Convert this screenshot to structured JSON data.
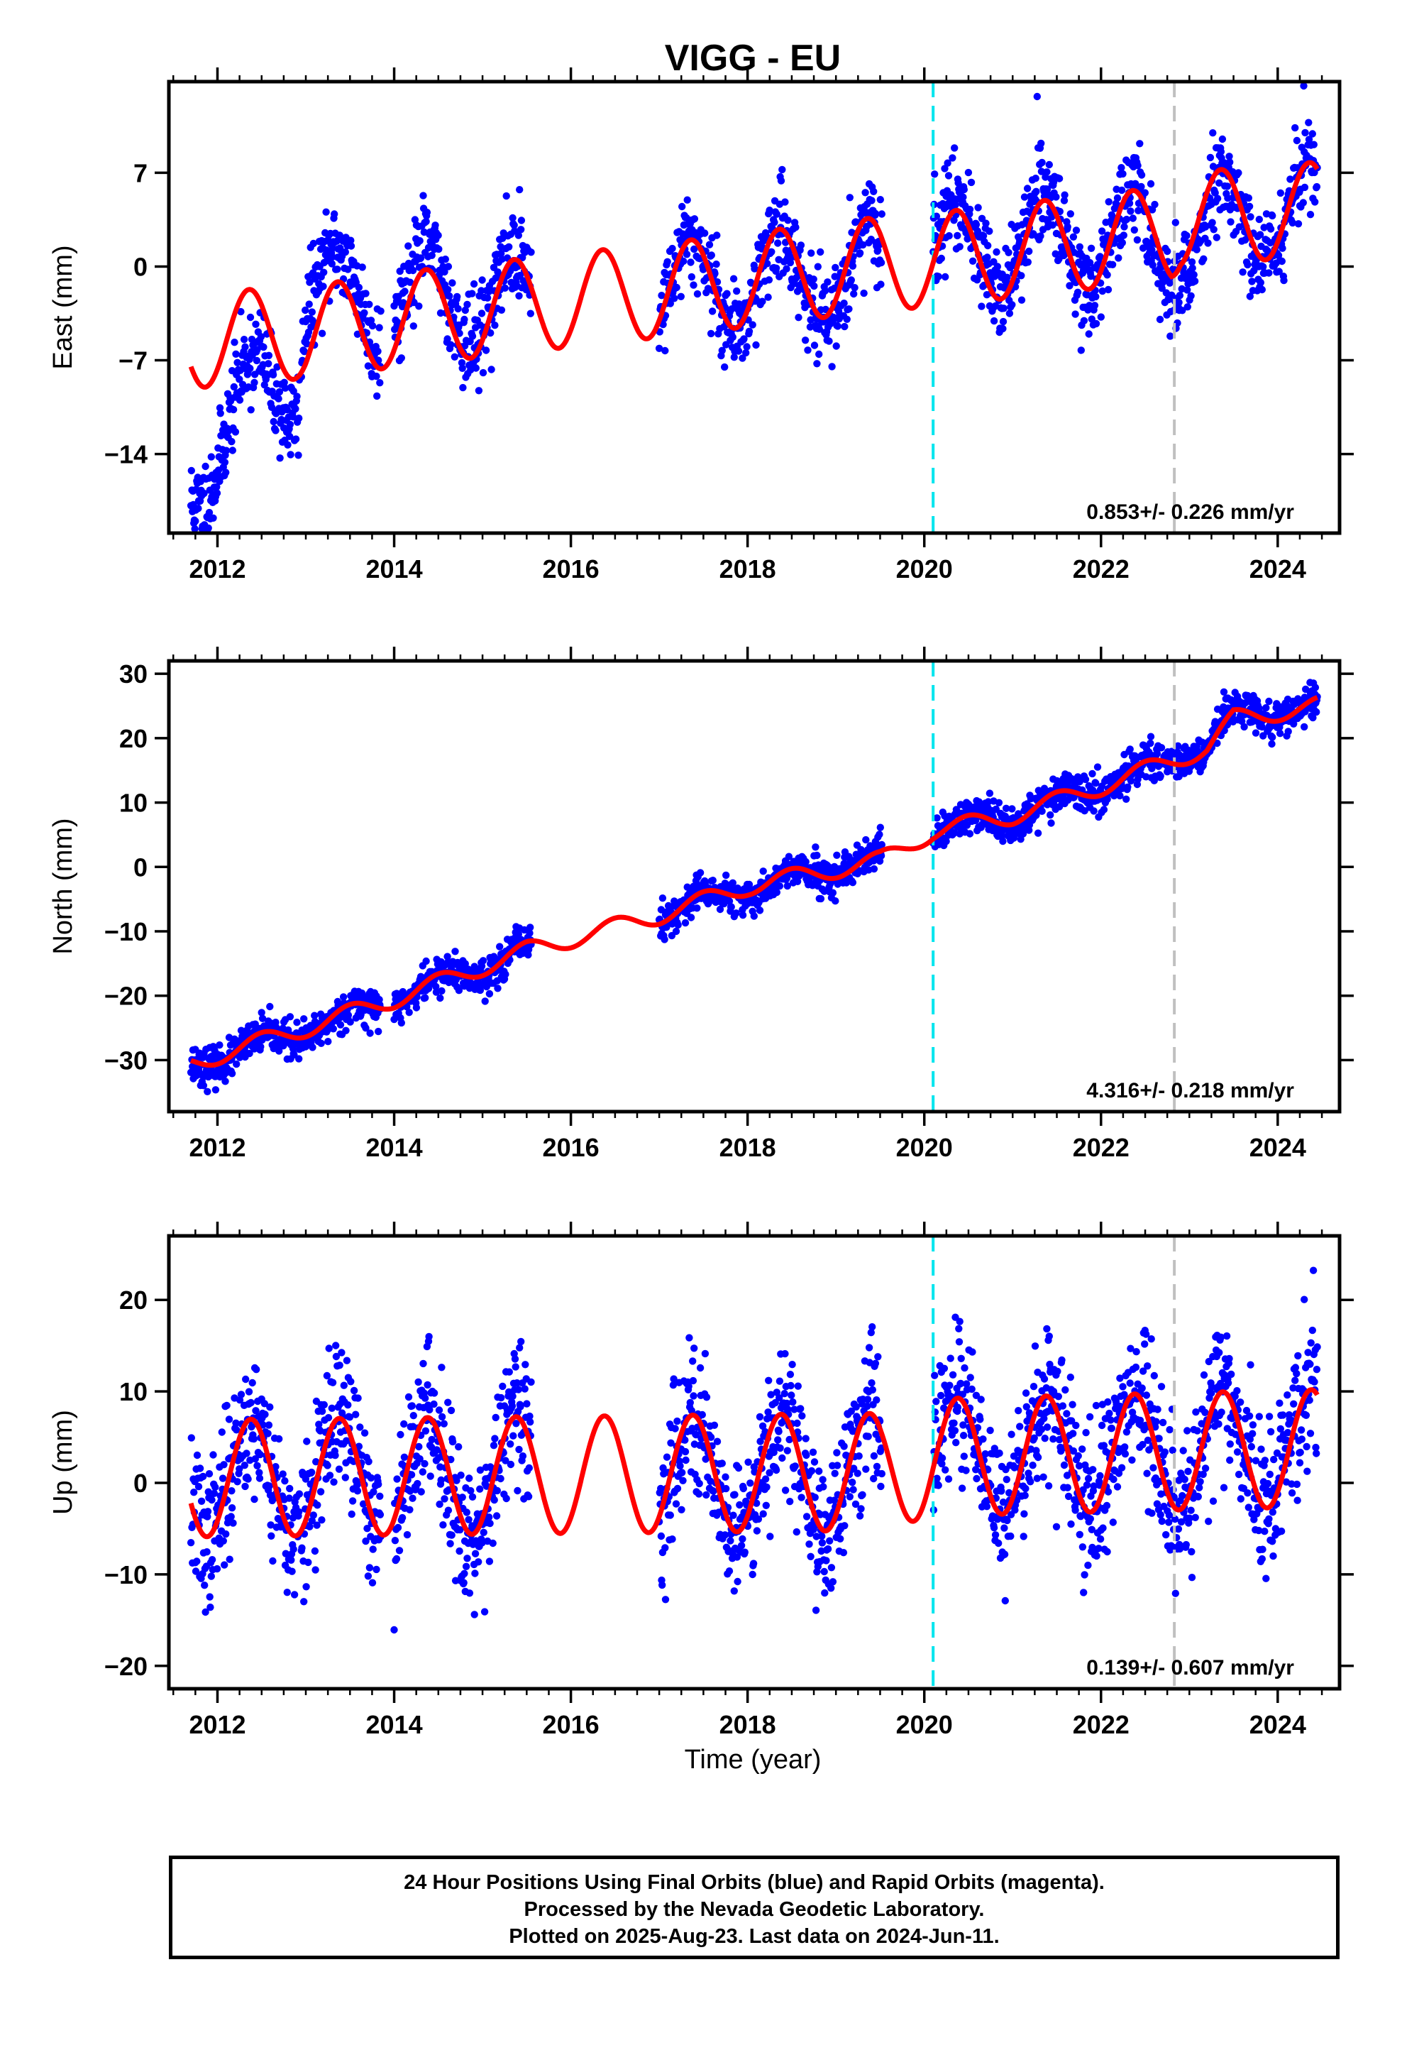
{
  "title": "VIGG - EU",
  "xlabel": "Time (year)",
  "caption": {
    "line1": "24 Hour Positions Using Final Orbits (blue) and Rapid Orbits (magenta).",
    "line2": "Processed by the Nevada Geodetic Laboratory.",
    "line3": "Plotted on 2025-Aug-23. Last data on 2024-Jun-11."
  },
  "colors": {
    "points": "#0000ff",
    "model": "#ff0000",
    "event_cyan": "#00e5ee",
    "event_gray": "#c0c0c0",
    "frame": "#000000"
  },
  "chart_data": [
    {
      "type": "scatter",
      "ylabel": "East (mm)",
      "xlim": [
        2011.45,
        2024.7
      ],
      "ylim": [
        -19.9,
        13.8
      ],
      "xticks": [
        2012,
        2014,
        2016,
        2018,
        2020,
        2022,
        2024
      ],
      "yticks": [
        -14,
        -7,
        0,
        7
      ],
      "vlines": [
        {
          "x": 2020.1,
          "color": "cyan"
        },
        {
          "x": 2022.83,
          "color": "gray"
        }
      ],
      "rate_label": "0.853+/- 0.226 mm/yr",
      "series": [
        {
          "kind": "points",
          "seed": 11,
          "amp": 3.5,
          "phase": 0.36,
          "noise": 1.7,
          "segments": [
            [
              2011.7,
              2012.93
            ],
            [
              2012.95,
              2013.85
            ],
            [
              2014.0,
              2015.55
            ],
            [
              2017.0,
              2019.52
            ],
            [
              2020.1,
              2024.45
            ]
          ],
          "y": [
            [
              2011.7,
              -15.5
            ],
            [
              2012.0,
              -13.0
            ],
            [
              2012.5,
              -9.0
            ],
            [
              2012.9,
              -8.0
            ],
            [
              2013.0,
              -1.5
            ],
            [
              2013.8,
              -2.8
            ],
            [
              2014.0,
              -2.0
            ],
            [
              2015.5,
              -2.5
            ],
            [
              2017.0,
              -1.5
            ],
            [
              2019.5,
              -0.5
            ],
            [
              2020.1,
              1.5
            ],
            [
              2022.0,
              2.0
            ],
            [
              2022.8,
              1.5
            ],
            [
              2023.5,
              3.5
            ],
            [
              2024.45,
              4.5
            ]
          ]
        },
        {
          "kind": "model",
          "amp": 3.5,
          "phase": 0.36,
          "y": [
            [
              2011.7,
              -5.6
            ],
            [
              2012.9,
              -4.9
            ],
            [
              2013.0,
              -5.0
            ],
            [
              2014.0,
              -4.0
            ],
            [
              2016.0,
              -2.5
            ],
            [
              2017.0,
              -1.8
            ],
            [
              2019.5,
              0.2
            ],
            [
              2020.1,
              0.5
            ],
            [
              2022.8,
              2.5
            ],
            [
              2022.9,
              3.5
            ],
            [
              2024.45,
              4.3
            ]
          ]
        }
      ]
    },
    {
      "type": "scatter",
      "ylabel": "North (mm)",
      "xlim": [
        2011.45,
        2024.7
      ],
      "ylim": [
        -38,
        32
      ],
      "xticks": [
        2012,
        2014,
        2016,
        2018,
        2020,
        2022,
        2024
      ],
      "yticks": [
        -30,
        -20,
        -10,
        0,
        10,
        20,
        30
      ],
      "vlines": [
        {
          "x": 2020.1,
          "color": "cyan"
        },
        {
          "x": 2022.83,
          "color": "gray"
        }
      ],
      "rate_label": "4.316+/- 0.218 mm/yr",
      "series": [
        {
          "kind": "points",
          "seed": 23,
          "amp": 1.4,
          "phase": 0.5,
          "noise": 1.4,
          "segments": [
            [
              2011.7,
              2012.93
            ],
            [
              2012.95,
              2013.85
            ],
            [
              2014.0,
              2015.55
            ],
            [
              2017.0,
              2019.52
            ],
            [
              2020.1,
              2024.45
            ]
          ],
          "y": [
            [
              2011.7,
              -30.8
            ],
            [
              2013.0,
              -25.5
            ],
            [
              2014.0,
              -20.5
            ],
            [
              2015.5,
              -13.0
            ],
            [
              2017.0,
              -7.5
            ],
            [
              2018.0,
              -3.5
            ],
            [
              2019.5,
              1.0
            ],
            [
              2020.1,
              5.5
            ],
            [
              2021.0,
              8.0
            ],
            [
              2022.0,
              12.5
            ],
            [
              2022.8,
              16.5
            ],
            [
              2023.2,
              19.0
            ],
            [
              2023.5,
              23.5
            ],
            [
              2024.45,
              25.0
            ]
          ]
        },
        {
          "kind": "model",
          "amp": 1.4,
          "phase": 0.5,
          "y": [
            [
              2011.7,
              -30.5
            ],
            [
              2013.0,
              -25.0
            ],
            [
              2014.0,
              -20.5
            ],
            [
              2015.5,
              -13.0
            ],
            [
              2017.0,
              -7.5
            ],
            [
              2018.0,
              -3.0
            ],
            [
              2019.5,
              1.0
            ],
            [
              2020.1,
              5.5
            ],
            [
              2021.0,
              8.0
            ],
            [
              2022.0,
              12.5
            ],
            [
              2022.8,
              16.5
            ],
            [
              2023.2,
              18.5
            ],
            [
              2023.5,
              23.0
            ],
            [
              2024.45,
              25.0
            ]
          ]
        }
      ]
    },
    {
      "type": "scatter",
      "ylabel": "Up (mm)",
      "xlim": [
        2011.45,
        2024.7
      ],
      "ylim": [
        -22.5,
        27
      ],
      "xticks": [
        2012,
        2014,
        2016,
        2018,
        2020,
        2022,
        2024
      ],
      "yticks": [
        -20,
        -10,
        0,
        10,
        20
      ],
      "vlines": [
        {
          "x": 2020.1,
          "color": "cyan"
        },
        {
          "x": 2022.83,
          "color": "gray"
        }
      ],
      "rate_label": "0.139+/- 0.607 mm/yr",
      "series": [
        {
          "kind": "points",
          "seed": 37,
          "amp": 6.4,
          "phase": 0.38,
          "noise": 3.9,
          "segments": [
            [
              2011.7,
              2012.93
            ],
            [
              2012.95,
              2013.85
            ],
            [
              2014.0,
              2015.55
            ],
            [
              2017.0,
              2019.52
            ],
            [
              2020.1,
              2024.45
            ]
          ],
          "y": [
            [
              2011.7,
              0.5
            ],
            [
              2019.5,
              1.2
            ],
            [
              2020.1,
              2.8
            ],
            [
              2024.45,
              3.8
            ]
          ]
        },
        {
          "kind": "model",
          "amp": 6.4,
          "phase": 0.38,
          "y": [
            [
              2011.7,
              0.5
            ],
            [
              2019.5,
              1.2
            ],
            [
              2020.1,
              2.8
            ],
            [
              2024.45,
              3.8
            ]
          ]
        }
      ]
    }
  ]
}
